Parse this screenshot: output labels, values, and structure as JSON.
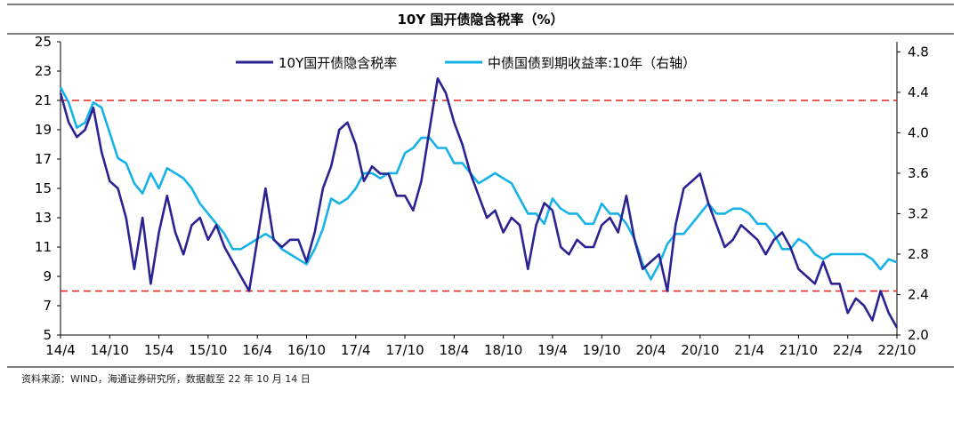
{
  "chart_data": {
    "type": "line",
    "title": "10Y 国开债隐含税率（%）",
    "source": "资料来源：WIND，海通证券研究所，数据截至 22 年 10 月 14 日",
    "x_tick_labels": [
      "14/4",
      "14/10",
      "15/4",
      "15/10",
      "16/4",
      "16/10",
      "17/4",
      "17/10",
      "18/4",
      "18/10",
      "19/4",
      "19/10",
      "20/4",
      "20/10",
      "21/4",
      "21/10",
      "22/4",
      "22/10"
    ],
    "x_range": [
      "2014-04",
      "2022-10"
    ],
    "y_left": {
      "ticks": [
        "5",
        "7",
        "9",
        "11",
        "13",
        "15",
        "17",
        "19",
        "21",
        "23",
        "25"
      ],
      "min": 5,
      "max": 25
    },
    "y_right": {
      "ticks": [
        "2.0",
        "2.4",
        "2.8",
        "3.2",
        "3.6",
        "4.0",
        "4.4",
        "4.8"
      ],
      "min": 2.0,
      "max": 4.9
    },
    "reference_lines": [
      {
        "axis": "left",
        "value": 21.0,
        "color": "#e0201b"
      },
      {
        "axis": "left",
        "value": 8.0,
        "color": "#e0201b"
      }
    ],
    "legend_position": "top-center",
    "series": [
      {
        "name": "10Y国开债隐含税率",
        "axis": "left",
        "color": "#2b2392",
        "x": [
          "2014-04",
          "2014-05",
          "2014-06",
          "2014-07",
          "2014-08",
          "2014-09",
          "2014-10",
          "2014-11",
          "2014-12",
          "2015-01",
          "2015-02",
          "2015-03",
          "2015-04",
          "2015-05",
          "2015-06",
          "2015-07",
          "2015-08",
          "2015-09",
          "2015-10",
          "2015-11",
          "2015-12",
          "2016-01",
          "2016-02",
          "2016-03",
          "2016-04",
          "2016-05",
          "2016-06",
          "2016-07",
          "2016-08",
          "2016-09",
          "2016-10",
          "2016-11",
          "2016-12",
          "2017-01",
          "2017-02",
          "2017-03",
          "2017-04",
          "2017-05",
          "2017-06",
          "2017-07",
          "2017-08",
          "2017-09",
          "2017-10",
          "2017-11",
          "2017-12",
          "2018-01",
          "2018-02",
          "2018-03",
          "2018-04",
          "2018-05",
          "2018-06",
          "2018-07",
          "2018-08",
          "2018-09",
          "2018-10",
          "2018-11",
          "2018-12",
          "2019-01",
          "2019-02",
          "2019-03",
          "2019-04",
          "2019-05",
          "2019-06",
          "2019-07",
          "2019-08",
          "2019-09",
          "2019-10",
          "2019-11",
          "2019-12",
          "2020-01",
          "2020-02",
          "2020-03",
          "2020-04",
          "2020-05",
          "2020-06",
          "2020-07",
          "2020-08",
          "2020-09",
          "2020-10",
          "2020-11",
          "2020-12",
          "2021-01",
          "2021-02",
          "2021-03",
          "2021-04",
          "2021-05",
          "2021-06",
          "2021-07",
          "2021-08",
          "2021-09",
          "2021-10",
          "2021-11",
          "2021-12",
          "2022-01",
          "2022-02",
          "2022-03",
          "2022-04",
          "2022-05",
          "2022-06",
          "2022-07",
          "2022-08",
          "2022-09",
          "2022-10"
        ],
        "y": [
          21.5,
          19.5,
          18.5,
          19.0,
          20.5,
          17.5,
          15.5,
          15.0,
          13.0,
          9.5,
          13.0,
          8.5,
          12.0,
          14.5,
          12.0,
          10.5,
          12.5,
          13.0,
          11.5,
          12.5,
          11.0,
          10.0,
          9.0,
          8.0,
          11.5,
          15.0,
          11.5,
          11.0,
          11.5,
          11.5,
          10.0,
          12.0,
          15.0,
          16.5,
          19.0,
          19.5,
          18.0,
          15.5,
          16.5,
          16.0,
          16.0,
          14.5,
          14.5,
          13.5,
          15.5,
          19.0,
          22.5,
          21.5,
          19.5,
          18.0,
          16.0,
          14.5,
          13.0,
          13.5,
          12.0,
          13.0,
          12.5,
          9.5,
          12.5,
          14.0,
          13.5,
          11.0,
          10.5,
          11.5,
          11.0,
          11.0,
          12.5,
          13.0,
          12.0,
          14.5,
          11.5,
          9.5,
          10.0,
          10.5,
          8.0,
          12.5,
          15.0,
          15.5,
          16.0,
          14.0,
          12.5,
          11.0,
          11.5,
          12.5,
          12.0,
          11.5,
          10.5,
          11.5,
          12.0,
          11.0,
          9.5,
          9.0,
          8.5,
          10.0,
          8.5,
          8.5,
          6.5,
          7.5,
          7.0,
          6.0,
          8.0,
          6.5,
          5.5
        ]
      },
      {
        "name": "中债国债到期收益率:10年（右轴）",
        "axis": "right",
        "color": "#17b2e8",
        "x": [
          "2014-04",
          "2014-05",
          "2014-06",
          "2014-07",
          "2014-08",
          "2014-09",
          "2014-10",
          "2014-11",
          "2014-12",
          "2015-01",
          "2015-02",
          "2015-03",
          "2015-04",
          "2015-05",
          "2015-06",
          "2015-07",
          "2015-08",
          "2015-09",
          "2015-10",
          "2015-11",
          "2015-12",
          "2016-01",
          "2016-02",
          "2016-03",
          "2016-04",
          "2016-05",
          "2016-06",
          "2016-07",
          "2016-08",
          "2016-09",
          "2016-10",
          "2016-11",
          "2016-12",
          "2017-01",
          "2017-02",
          "2017-03",
          "2017-04",
          "2017-05",
          "2017-06",
          "2017-07",
          "2017-08",
          "2017-09",
          "2017-10",
          "2017-11",
          "2017-12",
          "2018-01",
          "2018-02",
          "2018-03",
          "2018-04",
          "2018-05",
          "2018-06",
          "2018-07",
          "2018-08",
          "2018-09",
          "2018-10",
          "2018-11",
          "2018-12",
          "2019-01",
          "2019-02",
          "2019-03",
          "2019-04",
          "2019-05",
          "2019-06",
          "2019-07",
          "2019-08",
          "2019-09",
          "2019-10",
          "2019-11",
          "2019-12",
          "2020-01",
          "2020-02",
          "2020-03",
          "2020-04",
          "2020-05",
          "2020-06",
          "2020-07",
          "2020-08",
          "2020-09",
          "2020-10",
          "2020-11",
          "2020-12",
          "2021-01",
          "2021-02",
          "2021-03",
          "2021-04",
          "2021-05",
          "2021-06",
          "2021-07",
          "2021-08",
          "2021-09",
          "2021-10",
          "2021-11",
          "2021-12",
          "2022-01",
          "2022-02",
          "2022-03",
          "2022-04",
          "2022-05",
          "2022-06",
          "2022-07",
          "2022-08",
          "2022-09",
          "2022-10"
        ],
        "y": [
          4.45,
          4.3,
          4.05,
          4.1,
          4.3,
          4.25,
          4.0,
          3.75,
          3.7,
          3.5,
          3.4,
          3.6,
          3.45,
          3.65,
          3.6,
          3.55,
          3.45,
          3.3,
          3.2,
          3.1,
          3.0,
          2.85,
          2.85,
          2.9,
          2.95,
          3.0,
          2.95,
          2.85,
          2.8,
          2.75,
          2.7,
          2.85,
          3.05,
          3.35,
          3.3,
          3.35,
          3.45,
          3.6,
          3.6,
          3.55,
          3.6,
          3.6,
          3.8,
          3.85,
          3.95,
          3.95,
          3.85,
          3.85,
          3.7,
          3.7,
          3.6,
          3.5,
          3.55,
          3.6,
          3.55,
          3.5,
          3.35,
          3.2,
          3.2,
          3.1,
          3.35,
          3.25,
          3.2,
          3.2,
          3.1,
          3.1,
          3.3,
          3.2,
          3.2,
          3.1,
          2.95,
          2.7,
          2.55,
          2.7,
          2.9,
          3.0,
          3.0,
          3.1,
          3.2,
          3.3,
          3.2,
          3.2,
          3.25,
          3.25,
          3.2,
          3.1,
          3.1,
          3.0,
          2.85,
          2.85,
          2.95,
          2.9,
          2.8,
          2.75,
          2.8,
          2.8,
          2.8,
          2.8,
          2.8,
          2.75,
          2.65,
          2.75,
          2.72
        ]
      }
    ]
  }
}
